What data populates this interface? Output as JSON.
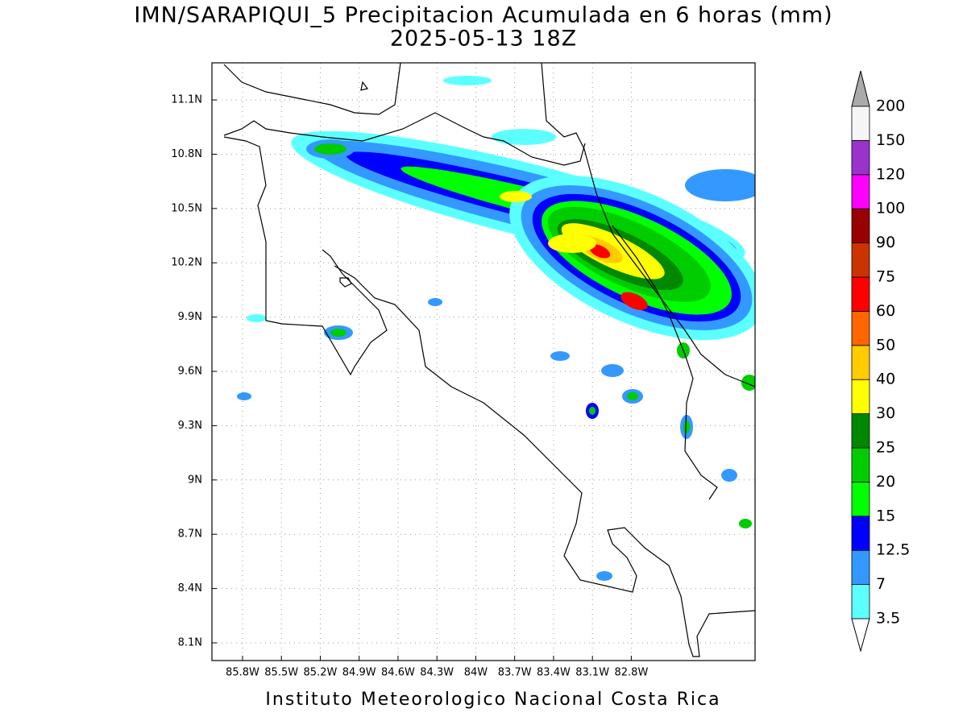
{
  "map": {
    "title": "IMN/SARAPIQUI_5 Precipitacion Acumulada en 6 horas (mm)",
    "subtitle": "2025-05-13 18Z",
    "credit": "Instituto Meteorologico Nacional Costa Rica",
    "xlim": [
      -86.036,
      -81.845
    ],
    "ylim": [
      8.002,
      11.305
    ],
    "grid": true,
    "xticks": [
      {
        "value": -85.8,
        "label": "85.8W"
      },
      {
        "value": -85.5,
        "label": "85.5W"
      },
      {
        "value": -85.2,
        "label": "85.2W"
      },
      {
        "value": -84.9,
        "label": "84.9W"
      },
      {
        "value": -84.6,
        "label": "84.6W"
      },
      {
        "value": -84.3,
        "label": "84.3W"
      },
      {
        "value": -84,
        "label": "84W"
      },
      {
        "value": -83.7,
        "label": "83.7W"
      },
      {
        "value": -83.4,
        "label": "83.4W"
      },
      {
        "value": -83.1,
        "label": "83.1W"
      },
      {
        "value": -82.8,
        "label": "82.8W"
      }
    ],
    "yticks": [
      {
        "value": 8.1,
        "label": "8.1N"
      },
      {
        "value": 8.4,
        "label": "8.4N"
      },
      {
        "value": 8.7,
        "label": "8.7N"
      },
      {
        "value": 9,
        "label": "9N"
      },
      {
        "value": 9.3,
        "label": "9.3N"
      },
      {
        "value": 9.6,
        "label": "9.6N"
      },
      {
        "value": 9.9,
        "label": "9.9N"
      },
      {
        "value": 10.2,
        "label": "10.2N"
      },
      {
        "value": 10.5,
        "label": "10.5N"
      },
      {
        "value": 10.8,
        "label": "10.8N"
      },
      {
        "value": 11.1,
        "label": "11.1N"
      }
    ],
    "colorbar": {
      "levels": [
        3.5,
        7,
        12.5,
        15,
        20,
        25,
        30,
        40,
        50,
        60,
        75,
        90,
        100,
        120,
        150,
        200
      ],
      "colors": [
        "#5cffff",
        "#3399ff",
        "#0000ff",
        "#00ff00",
        "#00cc00",
        "#008800",
        "#ffff00",
        "#ffcc00",
        "#ff6600",
        "#ff0000",
        "#cc3300",
        "#990000",
        "#ff00ff",
        "#9933cc",
        "#f5f5f5"
      ],
      "under_color": "#ffffff",
      "over_color": "#aaaaaa"
    }
  }
}
